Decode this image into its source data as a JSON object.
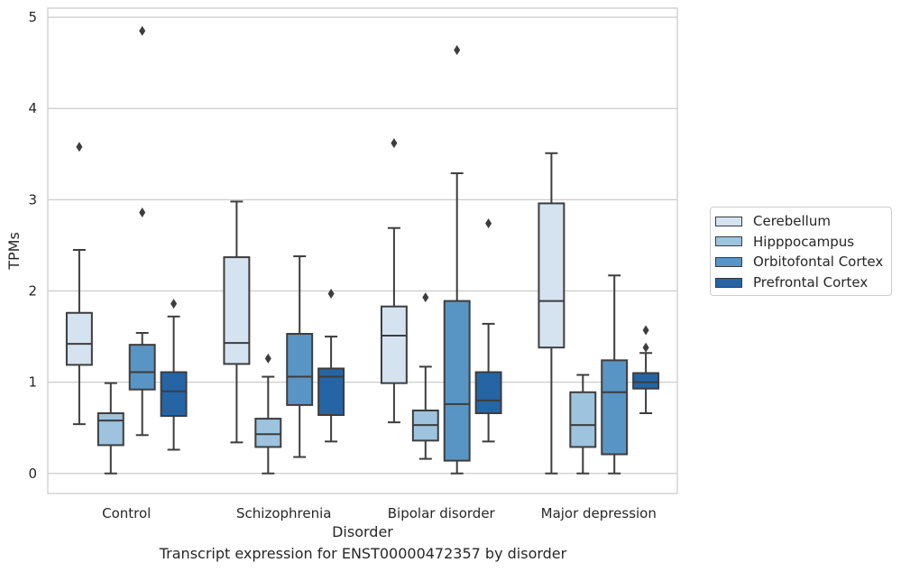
{
  "chart_data": {
    "type": "box",
    "title": "",
    "caption": "Transcript expression for ENST00000472357 by disorder",
    "xlabel": "Disorder",
    "ylabel": "TPMs",
    "ylim": [
      -0.22,
      5.1
    ],
    "yticks": [
      "0",
      "1",
      "2",
      "3",
      "4",
      "5"
    ],
    "categories": [
      "Control",
      "Schizophrenia",
      "Bipolar disorder",
      "Major depression"
    ],
    "grid": true,
    "legend_position": "right",
    "series": [
      {
        "name": "Cerebellum",
        "color": "#d5e3f1",
        "boxes": [
          {
            "whislo": 0.54,
            "q1": 1.19,
            "med": 1.42,
            "q3": 1.76,
            "whishi": 2.45,
            "fliers": [
              3.58
            ]
          },
          {
            "whislo": 0.34,
            "q1": 1.2,
            "med": 1.43,
            "q3": 2.37,
            "whishi": 2.98,
            "fliers": []
          },
          {
            "whislo": 0.56,
            "q1": 0.99,
            "med": 1.51,
            "q3": 1.83,
            "whishi": 2.69,
            "fliers": [
              3.62
            ]
          },
          {
            "whislo": 0.0,
            "q1": 1.38,
            "med": 1.89,
            "q3": 2.96,
            "whishi": 3.51,
            "fliers": []
          }
        ]
      },
      {
        "name": "Hipppocampus",
        "color": "#9dc3de",
        "boxes": [
          {
            "whislo": 0.0,
            "q1": 0.31,
            "med": 0.58,
            "q3": 0.66,
            "whishi": 0.99,
            "fliers": []
          },
          {
            "whislo": 0.0,
            "q1": 0.29,
            "med": 0.43,
            "q3": 0.6,
            "whishi": 1.06,
            "fliers": [
              1.26
            ]
          },
          {
            "whislo": 0.16,
            "q1": 0.36,
            "med": 0.53,
            "q3": 0.69,
            "whishi": 1.17,
            "fliers": [
              1.93
            ]
          },
          {
            "whislo": 0.0,
            "q1": 0.29,
            "med": 0.53,
            "q3": 0.89,
            "whishi": 1.08,
            "fliers": []
          }
        ]
      },
      {
        "name": "Orbitofontal Cortex",
        "color": "#5995c4",
        "boxes": [
          {
            "whislo": 0.42,
            "q1": 0.92,
            "med": 1.11,
            "q3": 1.41,
            "whishi": 1.54,
            "fliers": [
              2.86,
              4.85
            ]
          },
          {
            "whislo": 0.18,
            "q1": 0.75,
            "med": 1.06,
            "q3": 1.53,
            "whishi": 2.38,
            "fliers": []
          },
          {
            "whislo": 0.0,
            "q1": 0.14,
            "med": 0.76,
            "q3": 1.89,
            "whishi": 3.29,
            "fliers": [
              4.64
            ]
          },
          {
            "whislo": 0.0,
            "q1": 0.21,
            "med": 0.89,
            "q3": 1.24,
            "whishi": 2.17,
            "fliers": []
          }
        ]
      },
      {
        "name": "Prefrontal Cortex",
        "color": "#2565a6",
        "boxes": [
          {
            "whislo": 0.26,
            "q1": 0.63,
            "med": 0.9,
            "q3": 1.11,
            "whishi": 1.72,
            "fliers": [
              1.86
            ]
          },
          {
            "whislo": 0.35,
            "q1": 0.64,
            "med": 1.06,
            "q3": 1.15,
            "whishi": 1.5,
            "fliers": [
              1.97
            ]
          },
          {
            "whislo": 0.35,
            "q1": 0.66,
            "med": 0.8,
            "q3": 1.11,
            "whishi": 1.64,
            "fliers": [
              2.74
            ]
          },
          {
            "whislo": 0.66,
            "q1": 0.93,
            "med": 1.0,
            "q3": 1.1,
            "whishi": 1.32,
            "fliers": [
              1.38,
              1.57
            ]
          }
        ]
      }
    ]
  }
}
